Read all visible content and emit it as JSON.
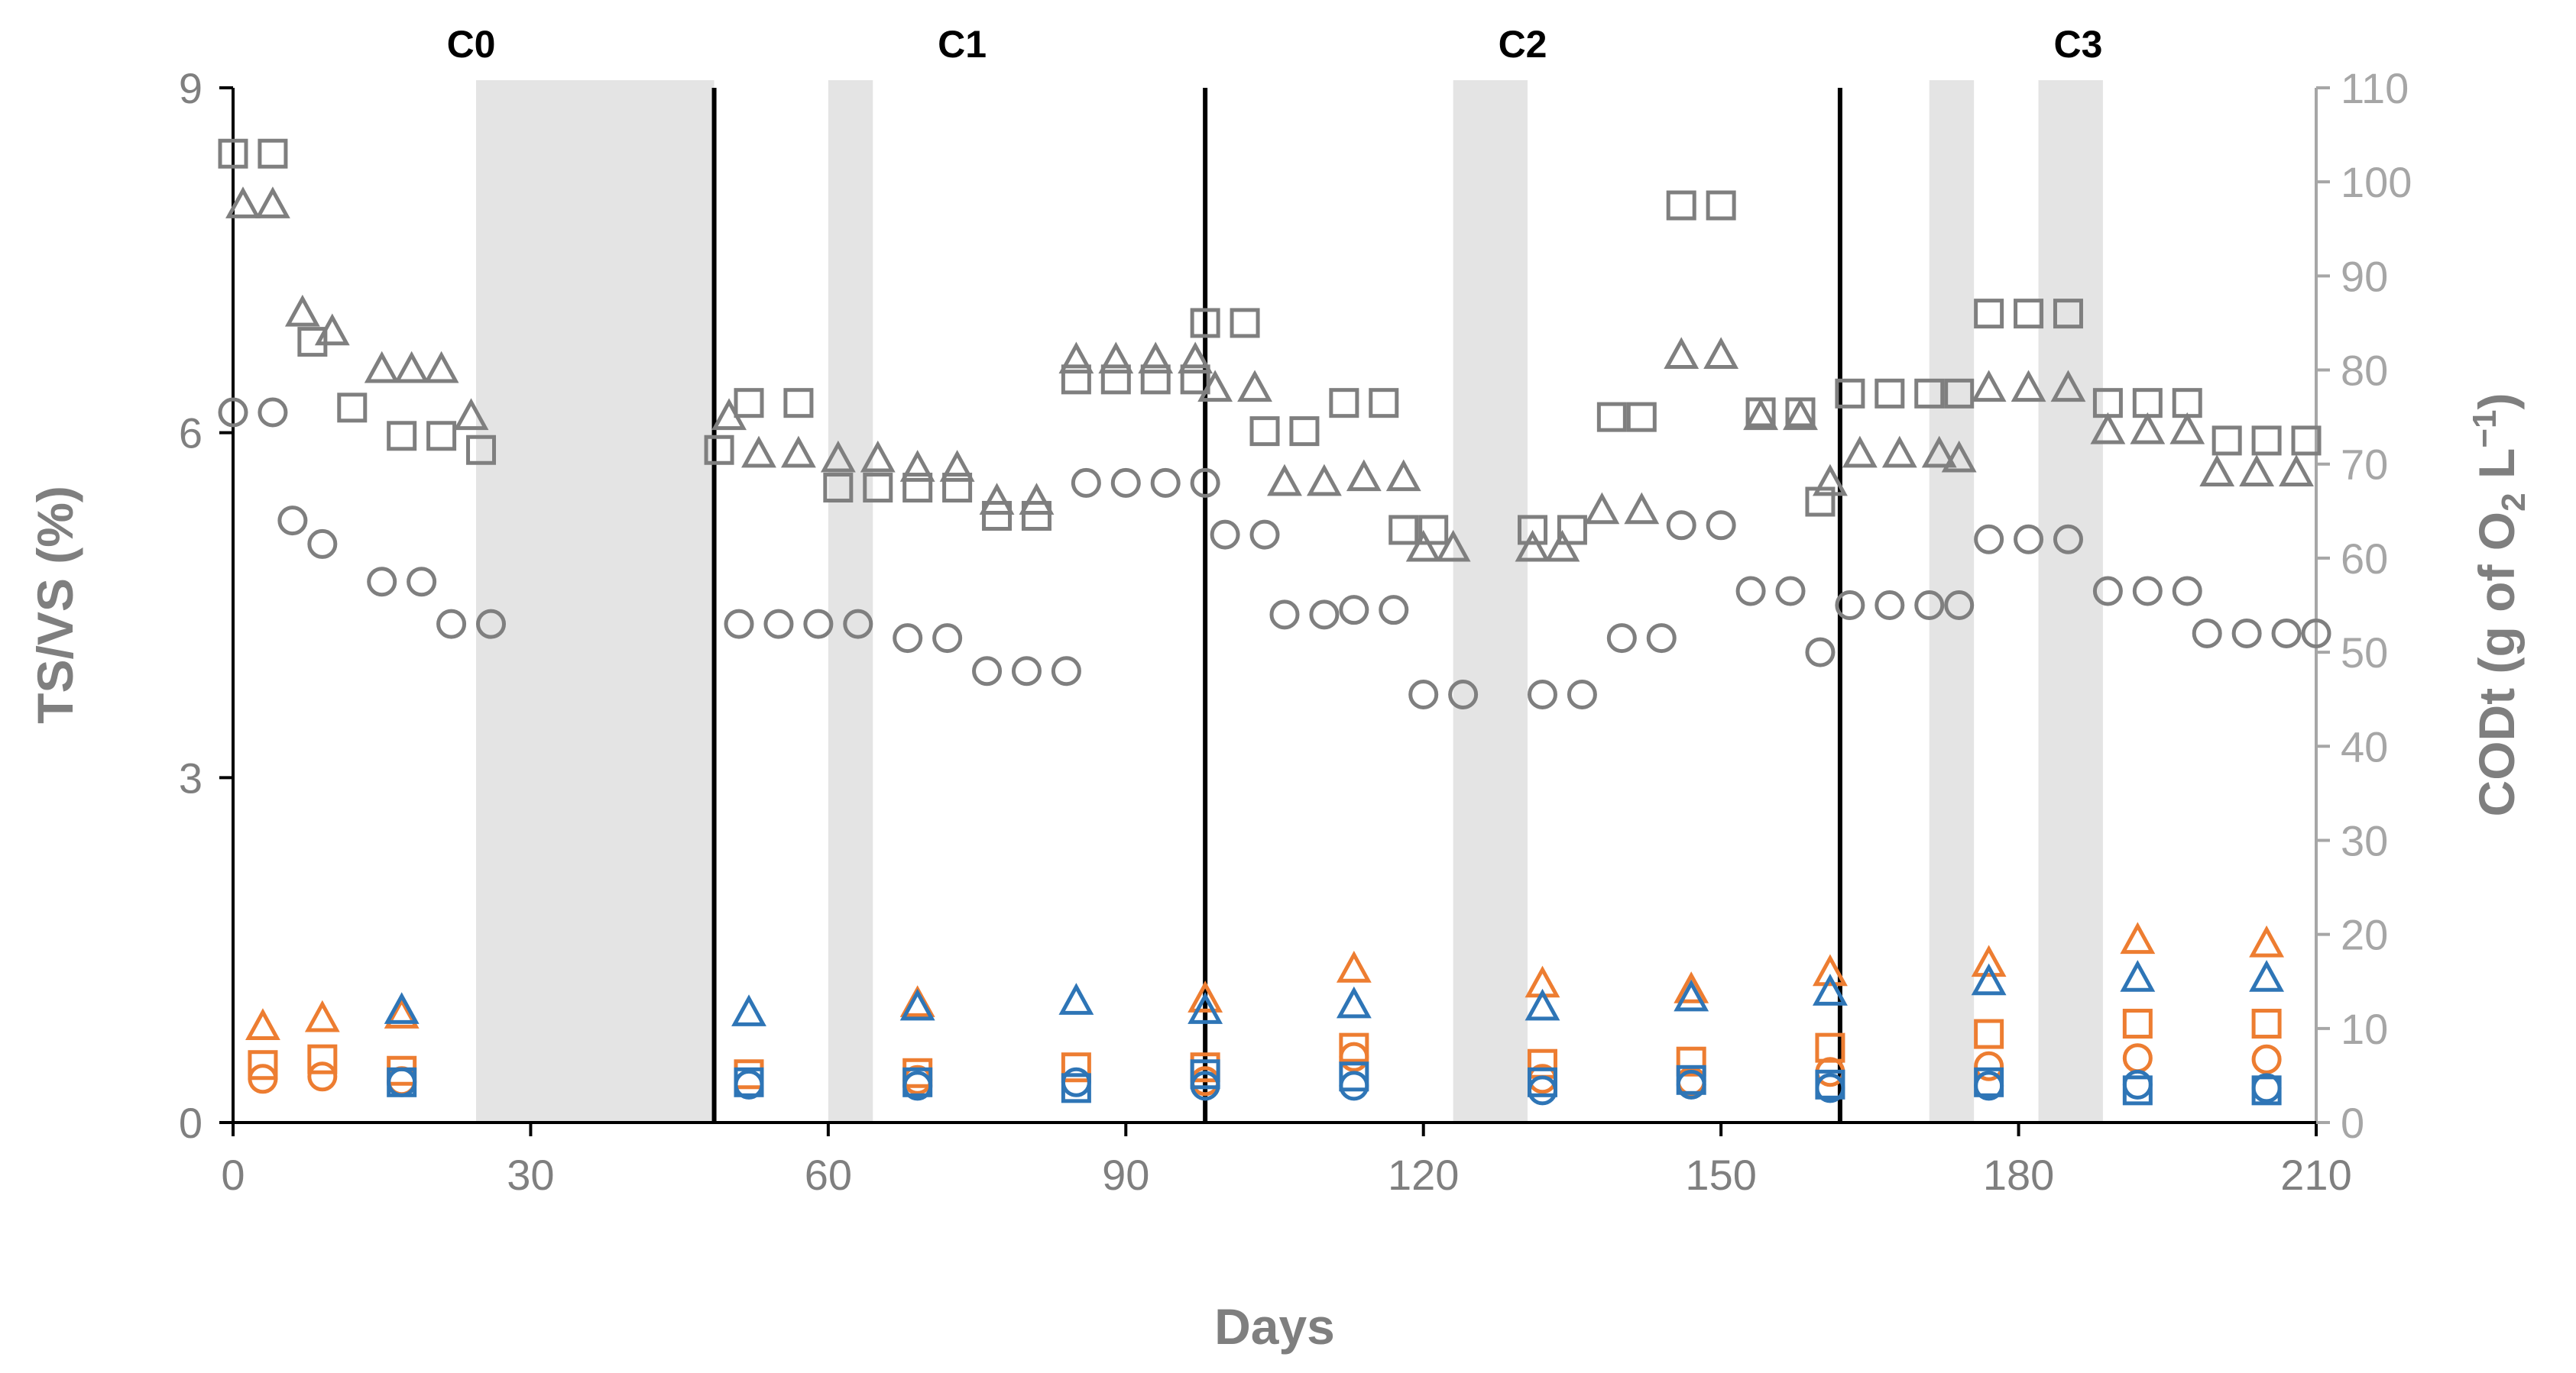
{
  "chart_data": {
    "type": "scatter",
    "xlabel": "Days",
    "ylabel_left": "TS/VS (%)",
    "ylabel_right": {
      "main": "CODt (g of O",
      "sub": "2",
      "mid": " L",
      "sup": "−1",
      "end": ")"
    },
    "xlim": [
      0,
      210
    ],
    "xticks": [
      "0",
      "30",
      "60",
      "90",
      "120",
      "150",
      "180",
      "210"
    ],
    "ylim_left": [
      0,
      9
    ],
    "yticks_left": [
      "0",
      "3",
      "6",
      "9"
    ],
    "ylim_right": [
      0,
      110
    ],
    "yticks_right": [
      "0",
      "10",
      "20",
      "30",
      "40",
      "50",
      "60",
      "70",
      "80",
      "90",
      "100",
      "110"
    ],
    "cycle_labels": [
      {
        "label": "C0",
        "x": 24
      },
      {
        "label": "C1",
        "x": 73.5
      },
      {
        "label": "C2",
        "x": 130
      },
      {
        "label": "C3",
        "x": 186
      }
    ],
    "cycle_boundaries": [
      48.5,
      98,
      162
    ],
    "shaded_periods": [
      [
        24.5,
        48.5
      ],
      [
        60,
        64.5
      ],
      [
        123,
        130.5
      ],
      [
        171,
        175.5
      ],
      [
        182,
        188.5
      ]
    ],
    "colors": {
      "gray": "#7f7f7f",
      "orange": "#ed7d31",
      "blue": "#2e75b6",
      "shade": "#e4e4e4",
      "axis": "#a6a6a6"
    },
    "series": [
      {
        "name": "gray-square",
        "marker": "square",
        "color": "#7f7f7f",
        "axis": "right",
        "points": [
          [
            0,
            103
          ],
          [
            4,
            103
          ],
          [
            8,
            83
          ],
          [
            12,
            76
          ],
          [
            17,
            73
          ],
          [
            21,
            73
          ],
          [
            25,
            71.5
          ],
          [
            49,
            71.5
          ],
          [
            52,
            76.5
          ],
          [
            57,
            76.5
          ],
          [
            61,
            67.5
          ],
          [
            65,
            67.5
          ],
          [
            69,
            67.5
          ],
          [
            73,
            67.5
          ],
          [
            77,
            64.5
          ],
          [
            81,
            64.5
          ],
          [
            85,
            79
          ],
          [
            89,
            79
          ],
          [
            93,
            79
          ],
          [
            97,
            79
          ],
          [
            98,
            85
          ],
          [
            102,
            85
          ],
          [
            104,
            73.5
          ],
          [
            108,
            73.5
          ],
          [
            112,
            76.5
          ],
          [
            116,
            76.5
          ],
          [
            118,
            63
          ],
          [
            121,
            63
          ],
          [
            131,
            63
          ],
          [
            135,
            63
          ],
          [
            139,
            75
          ],
          [
            142,
            75
          ],
          [
            146,
            97.5
          ],
          [
            150,
            97.5
          ],
          [
            154,
            75.5
          ],
          [
            158,
            75.5
          ],
          [
            160,
            66
          ],
          [
            163,
            77.5
          ],
          [
            167,
            77.5
          ],
          [
            171,
            77.5
          ],
          [
            174,
            77.5
          ],
          [
            177,
            86
          ],
          [
            181,
            86
          ],
          [
            185,
            86
          ],
          [
            189,
            76.5
          ],
          [
            193,
            76.5
          ],
          [
            197,
            76.5
          ],
          [
            201,
            72.5
          ],
          [
            205,
            72.5
          ],
          [
            209,
            72.5
          ]
        ]
      },
      {
        "name": "gray-triangle",
        "marker": "triangle",
        "color": "#7f7f7f",
        "axis": "right",
        "points": [
          [
            1,
            97.5
          ],
          [
            4,
            97.5
          ],
          [
            7,
            86
          ],
          [
            10,
            84
          ],
          [
            15,
            80
          ],
          [
            18,
            80
          ],
          [
            21,
            80
          ],
          [
            24,
            75
          ],
          [
            50,
            75
          ],
          [
            53,
            71
          ],
          [
            57,
            71
          ],
          [
            61,
            70.5
          ],
          [
            65,
            70.5
          ],
          [
            69,
            69.5
          ],
          [
            73,
            69.5
          ],
          [
            77,
            66
          ],
          [
            81,
            66
          ],
          [
            85,
            81
          ],
          [
            89,
            81
          ],
          [
            93,
            81
          ],
          [
            97,
            81
          ],
          [
            99,
            78
          ],
          [
            103,
            78
          ],
          [
            106,
            68
          ],
          [
            110,
            68
          ],
          [
            114,
            68.5
          ],
          [
            118,
            68.5
          ],
          [
            120,
            61
          ],
          [
            123,
            61
          ],
          [
            131,
            61
          ],
          [
            134,
            61
          ],
          [
            138,
            65
          ],
          [
            142,
            65
          ],
          [
            146,
            81.5
          ],
          [
            150,
            81.5
          ],
          [
            154,
            75
          ],
          [
            158,
            75
          ],
          [
            161,
            68
          ],
          [
            164,
            71
          ],
          [
            168,
            71
          ],
          [
            172,
            71
          ],
          [
            174,
            70.5
          ],
          [
            177,
            78
          ],
          [
            181,
            78
          ],
          [
            185,
            78
          ],
          [
            189,
            73.5
          ],
          [
            193,
            73.5
          ],
          [
            197,
            73.5
          ],
          [
            200,
            69
          ],
          [
            204,
            69
          ],
          [
            208,
            69
          ]
        ]
      },
      {
        "name": "gray-circle",
        "marker": "circle",
        "color": "#7f7f7f",
        "axis": "right",
        "points": [
          [
            0,
            75.5
          ],
          [
            4,
            75.5
          ],
          [
            6,
            64
          ],
          [
            9,
            61.5
          ],
          [
            15,
            57.5
          ],
          [
            19,
            57.5
          ],
          [
            22,
            53
          ],
          [
            26,
            53
          ],
          [
            51,
            53
          ],
          [
            55,
            53
          ],
          [
            59,
            53
          ],
          [
            63,
            53
          ],
          [
            68,
            51.5
          ],
          [
            72,
            51.5
          ],
          [
            76,
            48
          ],
          [
            80,
            48
          ],
          [
            84,
            48
          ],
          [
            86,
            68
          ],
          [
            90,
            68
          ],
          [
            94,
            68
          ],
          [
            98,
            68
          ],
          [
            100,
            62.5
          ],
          [
            104,
            62.5
          ],
          [
            106,
            54
          ],
          [
            110,
            54
          ],
          [
            113,
            54.5
          ],
          [
            117,
            54.5
          ],
          [
            120,
            45.5
          ],
          [
            124,
            45.5
          ],
          [
            132,
            45.5
          ],
          [
            136,
            45.5
          ],
          [
            140,
            51.5
          ],
          [
            144,
            51.5
          ],
          [
            146,
            63.5
          ],
          [
            150,
            63.5
          ],
          [
            153,
            56.5
          ],
          [
            157,
            56.5
          ],
          [
            160,
            50
          ],
          [
            163,
            55
          ],
          [
            167,
            55
          ],
          [
            171,
            55
          ],
          [
            174,
            55
          ],
          [
            177,
            62
          ],
          [
            181,
            62
          ],
          [
            185,
            62
          ],
          [
            189,
            56.5
          ],
          [
            193,
            56.5
          ],
          [
            197,
            56.5
          ],
          [
            199,
            52
          ],
          [
            203,
            52
          ],
          [
            207,
            52
          ],
          [
            210,
            52
          ]
        ]
      },
      {
        "name": "orange-triangle",
        "marker": "triangle",
        "color": "#ed7d31",
        "axis": "left",
        "points": [
          [
            3,
            0.83
          ],
          [
            9,
            0.9
          ],
          [
            17,
            0.93
          ],
          [
            69,
            1.03
          ],
          [
            98,
            1.07
          ],
          [
            113,
            1.33
          ],
          [
            132,
            1.2
          ],
          [
            147,
            1.15
          ],
          [
            161,
            1.3
          ],
          [
            177,
            1.38
          ],
          [
            192,
            1.58
          ],
          [
            205,
            1.55
          ]
        ]
      },
      {
        "name": "orange-square",
        "marker": "square",
        "color": "#ed7d31",
        "axis": "left",
        "points": [
          [
            3,
            0.5
          ],
          [
            9,
            0.55
          ],
          [
            17,
            0.45
          ],
          [
            52,
            0.42
          ],
          [
            69,
            0.43
          ],
          [
            85,
            0.48
          ],
          [
            98,
            0.48
          ],
          [
            113,
            0.65
          ],
          [
            132,
            0.51
          ],
          [
            147,
            0.53
          ],
          [
            161,
            0.65
          ],
          [
            177,
            0.77
          ],
          [
            192,
            0.86
          ],
          [
            205,
            0.86
          ]
        ]
      },
      {
        "name": "orange-circle",
        "marker": "circle",
        "color": "#ed7d31",
        "axis": "left",
        "points": [
          [
            3,
            0.38
          ],
          [
            9,
            0.4
          ],
          [
            17,
            0.36
          ],
          [
            69,
            0.37
          ],
          [
            98,
            0.36
          ],
          [
            113,
            0.57
          ],
          [
            132,
            0.38
          ],
          [
            147,
            0.36
          ],
          [
            161,
            0.44
          ],
          [
            177,
            0.49
          ],
          [
            192,
            0.56
          ],
          [
            205,
            0.55
          ]
        ]
      },
      {
        "name": "blue-triangle",
        "marker": "triangle",
        "color": "#2e75b6",
        "axis": "left",
        "points": [
          [
            17,
            0.97
          ],
          [
            52,
            0.95
          ],
          [
            69,
            1.0
          ],
          [
            85,
            1.05
          ],
          [
            98,
            0.97
          ],
          [
            113,
            1.02
          ],
          [
            132,
            1.0
          ],
          [
            147,
            1.08
          ],
          [
            161,
            1.13
          ],
          [
            177,
            1.22
          ],
          [
            192,
            1.25
          ],
          [
            205,
            1.25
          ]
        ]
      },
      {
        "name": "blue-square",
        "marker": "square",
        "color": "#2e75b6",
        "axis": "left",
        "points": [
          [
            17,
            0.35
          ],
          [
            52,
            0.35
          ],
          [
            69,
            0.35
          ],
          [
            85,
            0.3
          ],
          [
            98,
            0.42
          ],
          [
            113,
            0.4
          ],
          [
            132,
            0.35
          ],
          [
            147,
            0.37
          ],
          [
            161,
            0.33
          ],
          [
            177,
            0.35
          ],
          [
            192,
            0.28
          ],
          [
            205,
            0.28
          ]
        ]
      },
      {
        "name": "blue-circle",
        "marker": "circle",
        "color": "#2e75b6",
        "axis": "left",
        "points": [
          [
            17,
            0.35
          ],
          [
            52,
            0.33
          ],
          [
            69,
            0.32
          ],
          [
            85,
            0.35
          ],
          [
            98,
            0.32
          ],
          [
            113,
            0.32
          ],
          [
            132,
            0.28
          ],
          [
            147,
            0.33
          ],
          [
            161,
            0.3
          ],
          [
            177,
            0.32
          ],
          [
            192,
            0.33
          ],
          [
            205,
            0.3
          ]
        ]
      }
    ]
  }
}
